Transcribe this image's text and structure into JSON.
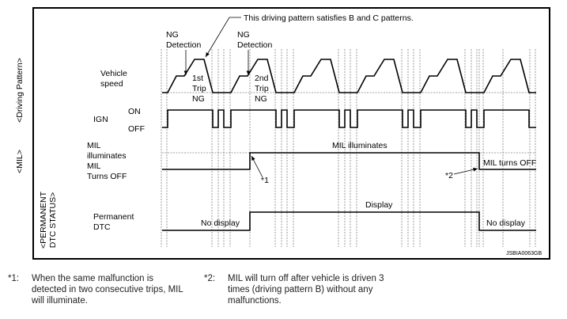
{
  "callout": "This driving pattern satisfies B and C patterns.",
  "ng_detection_1": [
    "NG",
    "Detection"
  ],
  "ng_detection_2": [
    "NG",
    "Detection"
  ],
  "trip1": [
    "1st",
    "Trip",
    "NG"
  ],
  "trip2": [
    "2nd",
    "Trip",
    "NG"
  ],
  "sections": {
    "driving": "<Driving Pattern>",
    "mil": "<MIL>",
    "dtc": [
      "<PERMANENT",
      "DTC STATUS>"
    ]
  },
  "labels": {
    "vehicle_speed": [
      "Vehicle",
      "speed"
    ],
    "ign": "IGN",
    "on": "ON",
    "off": "OFF",
    "mil_illuminates": [
      "MIL",
      "illuminates"
    ],
    "mil_turns_off": [
      "MIL",
      "Turns OFF"
    ],
    "permanent_dtc": [
      "Permanent",
      "DTC"
    ]
  },
  "annotations": {
    "mil_illuminates": "MIL illuminates",
    "mil_turns_off": "MIL turns OFF",
    "display": "Display",
    "no_display_1": "No display",
    "no_display_2": "No display",
    "star1": "*1",
    "star2": "*2"
  },
  "figure_id": "JSBIA0063GB",
  "notes": [
    {
      "num": "*1:",
      "text": "When the same malfunction is detected in two consecutive trips, MIL will illuminate."
    },
    {
      "num": "*2:",
      "text": "MIL will turn off after vehicle is driven 3 times (driving pattern B) without any malfunctions."
    }
  ]
}
